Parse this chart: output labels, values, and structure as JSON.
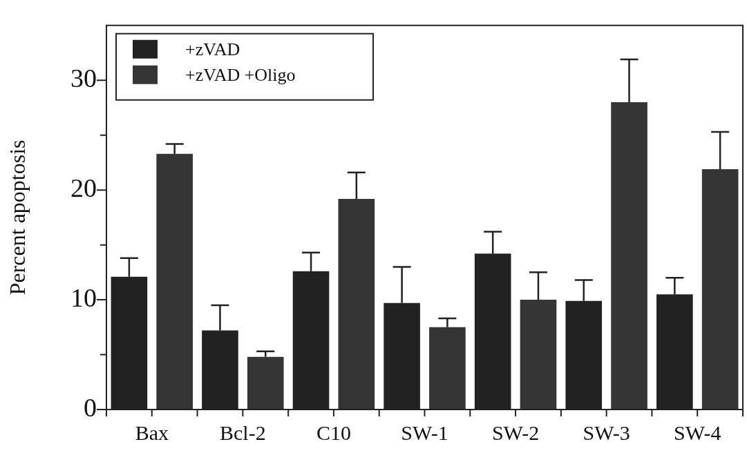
{
  "chart_data": {
    "type": "bar",
    "ylabel": "Percent apoptosis",
    "categories": [
      "Bax",
      "Bcl-2",
      "C10",
      "SW-1",
      "SW-2",
      "SW-3",
      "SW-4"
    ],
    "series": [
      {
        "name": "+zVAD",
        "color": "#222222",
        "values": [
          12.1,
          7.2,
          12.6,
          9.7,
          14.2,
          9.9,
          10.5
        ],
        "errors": [
          [
            12.1,
            13.8
          ],
          [
            7.2,
            9.5
          ],
          [
            12.6,
            14.3
          ],
          [
            9.7,
            13.0
          ],
          [
            14.2,
            16.2
          ],
          [
            9.9,
            11.8
          ],
          [
            10.5,
            12.0
          ]
        ]
      },
      {
        "name": "+zVAD +Oligo",
        "color": "#353535",
        "values": [
          23.3,
          4.8,
          19.2,
          7.5,
          10.0,
          28.0,
          21.9
        ],
        "errors": [
          [
            23.3,
            24.2
          ],
          [
            4.8,
            5.3
          ],
          [
            19.2,
            21.6
          ],
          [
            7.5,
            8.3
          ],
          [
            10.0,
            12.5
          ],
          [
            28.0,
            31.9
          ],
          [
            21.9,
            25.3
          ]
        ]
      }
    ],
    "ylim": [
      0,
      35
    ],
    "yticks": [
      0,
      {
        "value": 5,
        "label": null
      },
      10,
      {
        "value": 15,
        "label": null
      },
      20,
      {
        "value": 25,
        "label": null
      },
      30
    ],
    "grid": false,
    "legend": "top left"
  }
}
